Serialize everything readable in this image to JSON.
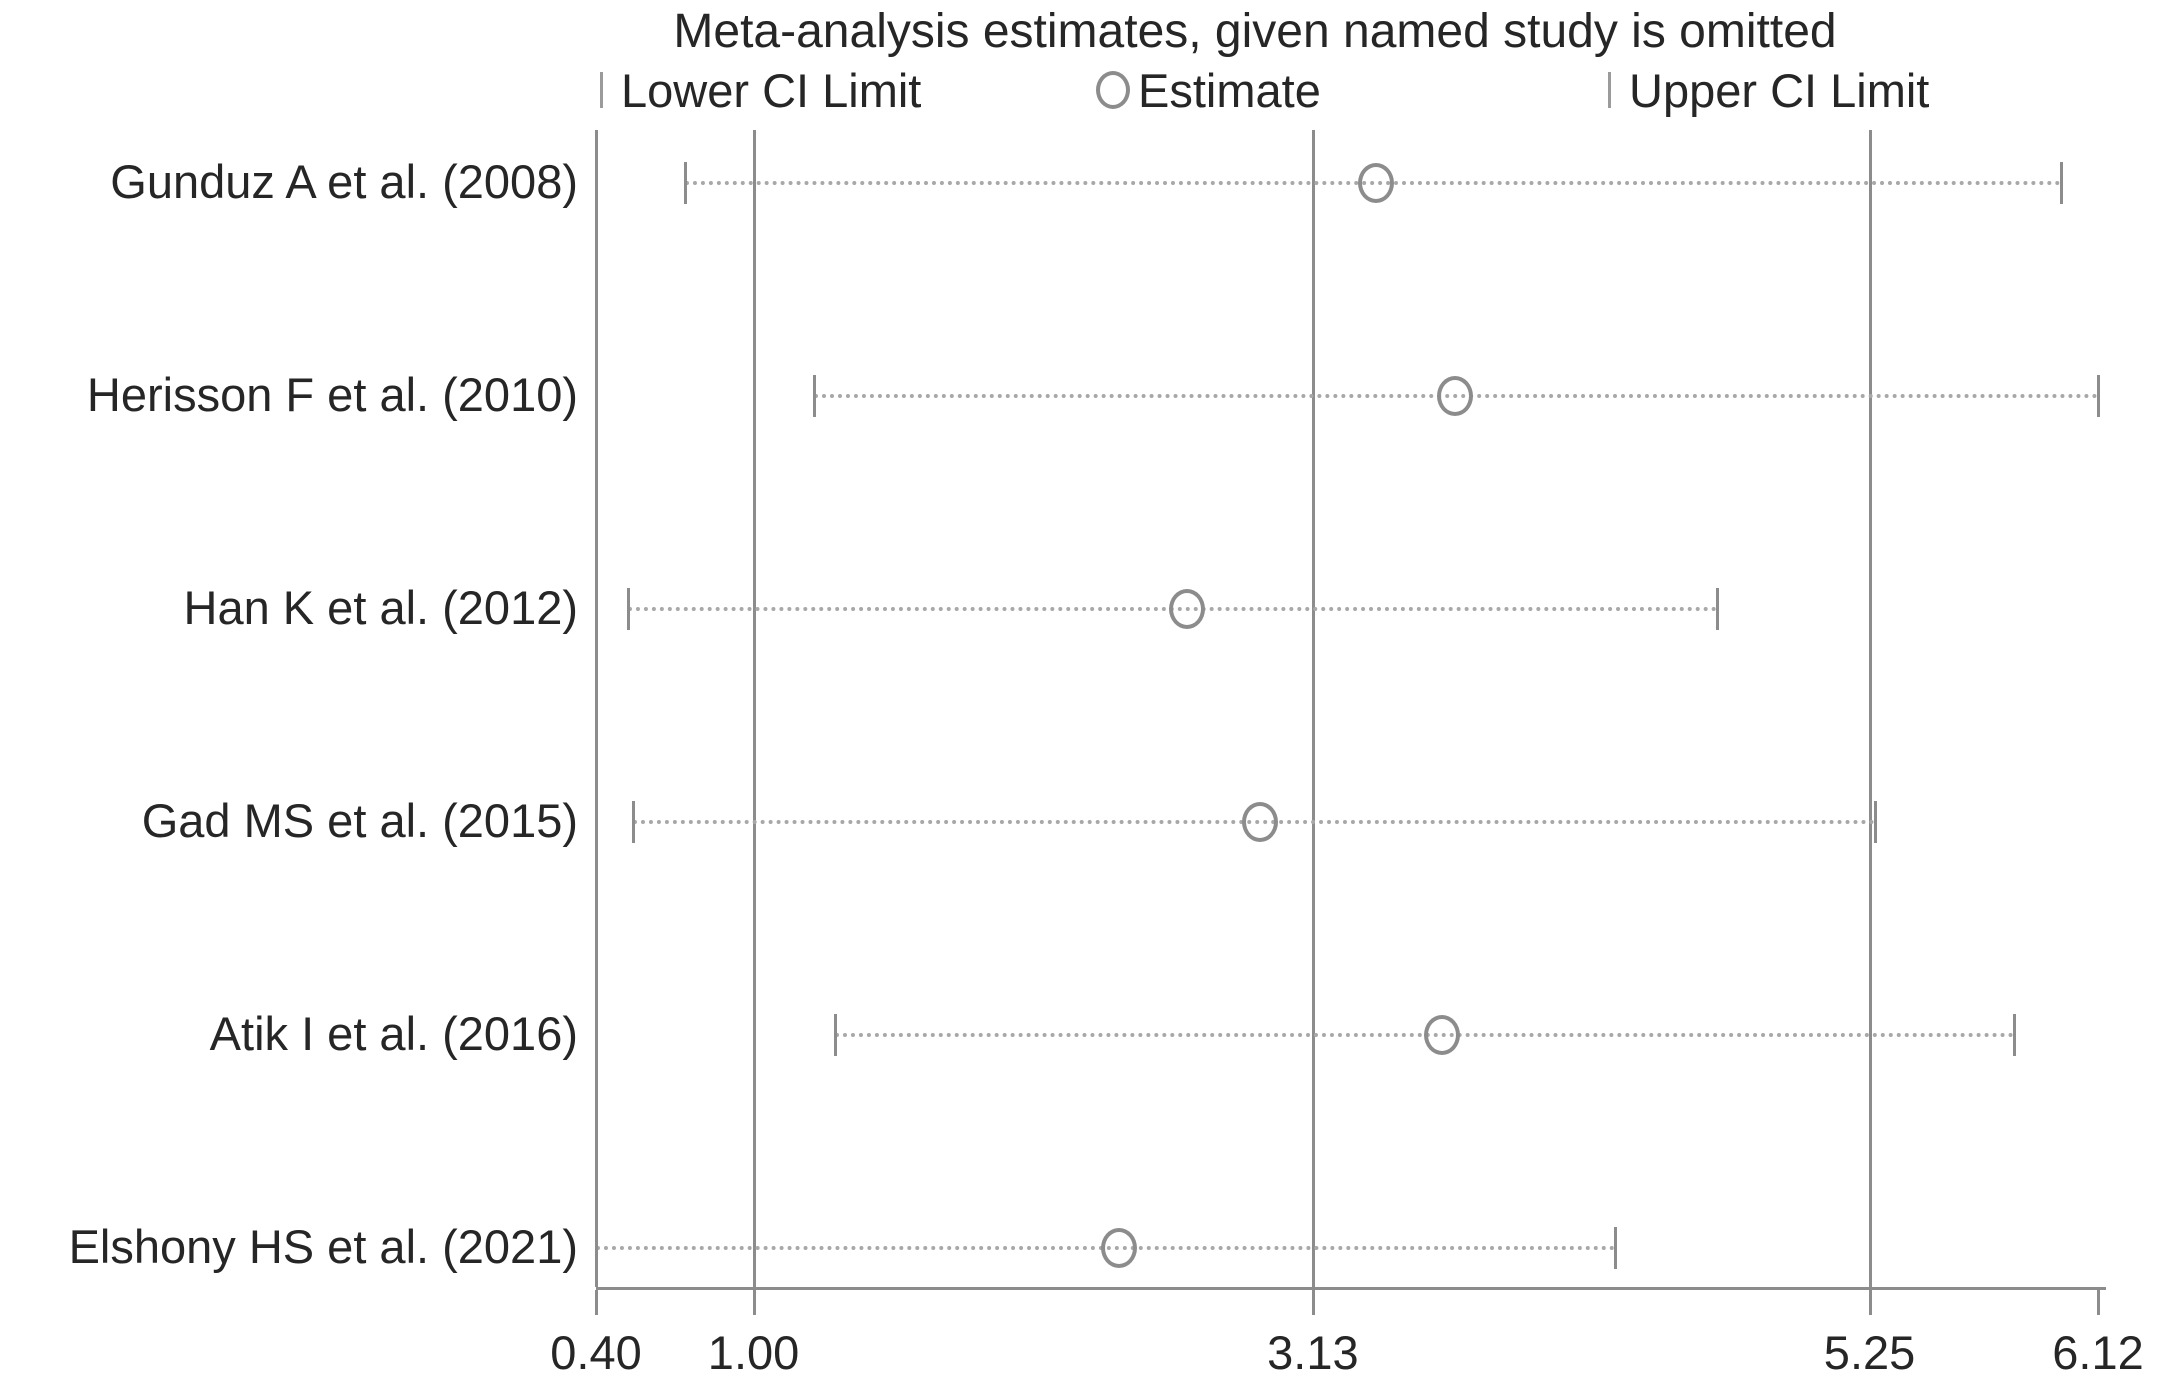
{
  "chart_data": {
    "type": "scatter",
    "subtype": "leave-one-out-meta-analysis",
    "title": "Meta-analysis estimates, given named study is omitted",
    "legend_entries": [
      "Lower CI Limit",
      "Estimate",
      "Upper CI Limit"
    ],
    "legend_position": "top",
    "xlim": [
      0.4,
      6.12
    ],
    "x_ticks": [
      0.4,
      1.0,
      3.13,
      5.25,
      6.12
    ],
    "x_tick_labels": [
      "0.40",
      "1.00",
      "3.13",
      "5.25",
      "6.12"
    ],
    "reference_lines": [
      1.0,
      3.13,
      5.25
    ],
    "grid": false,
    "studies": [
      {
        "label": "Gunduz A et al. (2008)",
        "lower": 0.74,
        "estimate": 3.37,
        "upper": 5.98
      },
      {
        "label": "Herisson F et al. (2010)",
        "lower": 1.23,
        "estimate": 3.67,
        "upper": 6.12
      },
      {
        "label": "Han K et al. (2012)",
        "lower": 0.52,
        "estimate": 2.65,
        "upper": 4.67
      },
      {
        "label": "Gad MS et al. (2015)",
        "lower": 0.54,
        "estimate": 2.93,
        "upper": 5.27
      },
      {
        "label": "Atik I et al. (2016)",
        "lower": 1.31,
        "estimate": 3.62,
        "upper": 5.8
      },
      {
        "label": "Elshony HS et al. (2021)",
        "lower": 0.4,
        "estimate": 2.39,
        "upper": 4.28
      }
    ]
  },
  "colors": {
    "text": "#262626",
    "line_gray": "#8c8c8c",
    "dotted_gray": "#a8a8a8",
    "background": "#ffffff"
  }
}
